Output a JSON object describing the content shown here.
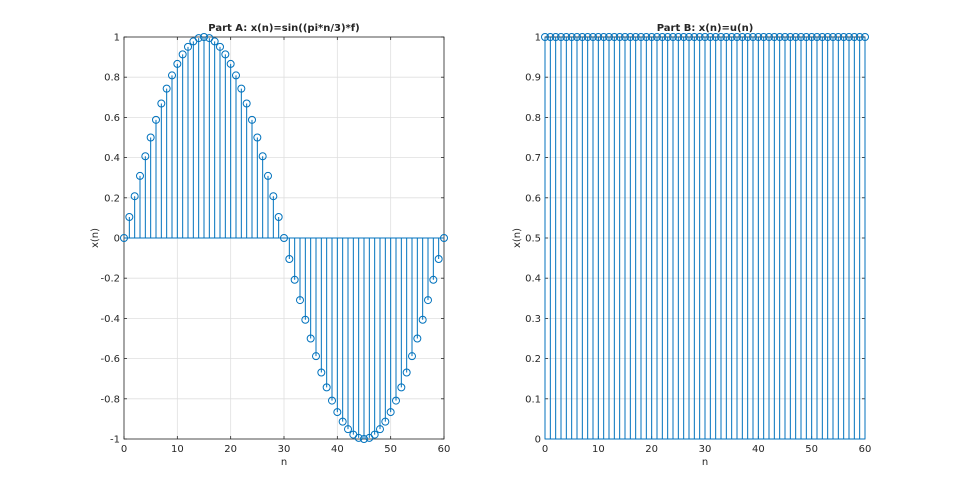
{
  "colors": {
    "stem": "#0072bd",
    "axis": "#262626",
    "grid": "#dfdfdf",
    "background": "#ffffff"
  },
  "chart_data": [
    {
      "type": "stem",
      "title": "Part A: x(n)=sin((pi*n/3)*f)",
      "xlabel": "n",
      "ylabel": "x(n)",
      "xlim": [
        0,
        60
      ],
      "ylim": [
        -1,
        1
      ],
      "xticks": [
        0,
        10,
        20,
        30,
        40,
        50,
        60
      ],
      "yticks": [
        -1,
        -0.8,
        -0.6,
        -0.4,
        -0.2,
        0,
        0.2,
        0.4,
        0.6,
        0.8,
        1
      ],
      "xtick_labels": [
        "0",
        "10",
        "20",
        "30",
        "40",
        "50",
        "60"
      ],
      "ytick_labels": [
        "-1",
        "-0.8",
        "-0.6",
        "-0.4",
        "-0.2",
        "0",
        "0.2",
        "0.4",
        "0.6",
        "0.8",
        "1"
      ],
      "grid": true,
      "series": [
        {
          "x": [
            0,
            1,
            2,
            3,
            4,
            5,
            6,
            7,
            8,
            9,
            10,
            11,
            12,
            13,
            14,
            15,
            16,
            17,
            18,
            19,
            20,
            21,
            22,
            23,
            24,
            25,
            26,
            27,
            28,
            29,
            30,
            31,
            32,
            33,
            34,
            35,
            36,
            37,
            38,
            39,
            40,
            41,
            42,
            43,
            44,
            45,
            46,
            47,
            48,
            49,
            50,
            51,
            52,
            53,
            54,
            55,
            56,
            57,
            58,
            59,
            60
          ],
          "values": [
            0,
            0.1045,
            0.2079,
            0.309,
            0.4067,
            0.5,
            0.5878,
            0.6691,
            0.7431,
            0.809,
            0.866,
            0.9135,
            0.9511,
            0.9781,
            0.9945,
            1,
            0.9945,
            0.9781,
            0.9511,
            0.9135,
            0.866,
            0.809,
            0.7431,
            0.6691,
            0.5878,
            0.5,
            0.4067,
            0.309,
            0.2079,
            0.1045,
            0,
            -0.1045,
            -0.2079,
            -0.309,
            -0.4067,
            -0.5,
            -0.5878,
            -0.6691,
            -0.7431,
            -0.809,
            -0.866,
            -0.9135,
            -0.9511,
            -0.9781,
            -0.9945,
            -1,
            -0.9945,
            -0.9781,
            -0.9511,
            -0.9135,
            -0.866,
            -0.809,
            -0.7431,
            -0.6691,
            -0.5878,
            -0.5,
            -0.4067,
            -0.309,
            -0.2079,
            -0.1045,
            0
          ]
        }
      ]
    },
    {
      "type": "stem",
      "title": "Part B: x(n)=u(n)",
      "xlabel": "n",
      "ylabel": "x(n)",
      "xlim": [
        0,
        60
      ],
      "ylim": [
        0,
        1
      ],
      "xticks": [
        0,
        10,
        20,
        30,
        40,
        50,
        60
      ],
      "yticks": [
        0,
        0.1,
        0.2,
        0.3,
        0.4,
        0.5,
        0.6,
        0.7,
        0.8,
        0.9,
        1
      ],
      "xtick_labels": [
        "0",
        "10",
        "20",
        "30",
        "40",
        "50",
        "60"
      ],
      "ytick_labels": [
        "0",
        "0.1",
        "0.2",
        "0.3",
        "0.4",
        "0.5",
        "0.6",
        "0.7",
        "0.8",
        "0.9",
        "1"
      ],
      "grid": true,
      "series": [
        {
          "x": [
            0,
            1,
            2,
            3,
            4,
            5,
            6,
            7,
            8,
            9,
            10,
            11,
            12,
            13,
            14,
            15,
            16,
            17,
            18,
            19,
            20,
            21,
            22,
            23,
            24,
            25,
            26,
            27,
            28,
            29,
            30,
            31,
            32,
            33,
            34,
            35,
            36,
            37,
            38,
            39,
            40,
            41,
            42,
            43,
            44,
            45,
            46,
            47,
            48,
            49,
            50,
            51,
            52,
            53,
            54,
            55,
            56,
            57,
            58,
            59,
            60
          ],
          "values": [
            1,
            1,
            1,
            1,
            1,
            1,
            1,
            1,
            1,
            1,
            1,
            1,
            1,
            1,
            1,
            1,
            1,
            1,
            1,
            1,
            1,
            1,
            1,
            1,
            1,
            1,
            1,
            1,
            1,
            1,
            1,
            1,
            1,
            1,
            1,
            1,
            1,
            1,
            1,
            1,
            1,
            1,
            1,
            1,
            1,
            1,
            1,
            1,
            1,
            1,
            1,
            1,
            1,
            1,
            1,
            1,
            1,
            1,
            1,
            1,
            1
          ]
        }
      ]
    }
  ]
}
